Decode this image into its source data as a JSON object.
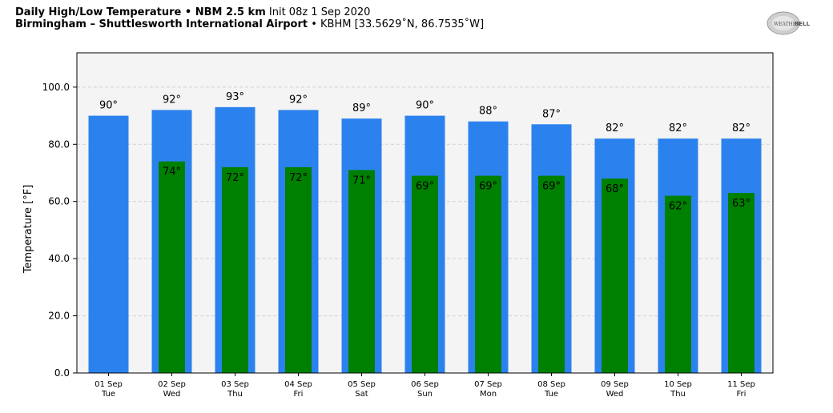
{
  "header": {
    "line1_bold": "Daily High/Low Temperature • NBM 2.5 km",
    "line1_normal": "Init 08z 1 Sep 2020",
    "line2_bold": "Birmingham – Shuttlesworth International Airport",
    "line2_normal": "• KBHM [33.5629˚N, 86.7535˚W]"
  },
  "logo": {
    "text_small": "WEATHER",
    "text_big": "BELL",
    "icon": "weatherbell-logo"
  },
  "colors": {
    "high": "#2b82ee",
    "low": "#008000",
    "background": "#f4f4f4",
    "grid": "#d0d0d0"
  },
  "chart_data": {
    "type": "bar",
    "ylabel": "Temperature [°F]",
    "ylim": [
      0,
      112
    ],
    "yticks": [
      "0.0",
      "20.0",
      "40.0",
      "60.0",
      "80.0",
      "100.0"
    ],
    "ytick_values": [
      0,
      20,
      40,
      60,
      80,
      100
    ],
    "grid": true,
    "categories": [
      {
        "date": "01 Sep",
        "day": "Tue"
      },
      {
        "date": "02 Sep",
        "day": "Wed"
      },
      {
        "date": "03 Sep",
        "day": "Thu"
      },
      {
        "date": "04 Sep",
        "day": "Fri"
      },
      {
        "date": "05 Sep",
        "day": "Sat"
      },
      {
        "date": "06 Sep",
        "day": "Sun"
      },
      {
        "date": "07 Sep",
        "day": "Mon"
      },
      {
        "date": "08 Sep",
        "day": "Tue"
      },
      {
        "date": "09 Sep",
        "day": "Wed"
      },
      {
        "date": "10 Sep",
        "day": "Thu"
      },
      {
        "date": "11 Sep",
        "day": "Fri"
      }
    ],
    "series": [
      {
        "key": "high",
        "values": [
          90,
          92,
          93,
          92,
          89,
          90,
          88,
          87,
          82,
          82,
          82
        ],
        "labels": [
          "90°",
          "92°",
          "93°",
          "92°",
          "89°",
          "90°",
          "88°",
          "87°",
          "82°",
          "82°",
          "82°"
        ]
      },
      {
        "key": "low",
        "values": [
          null,
          74,
          72,
          72,
          71,
          69,
          69,
          69,
          68,
          62,
          63
        ],
        "labels": [
          "",
          "74°",
          "72°",
          "72°",
          "71°",
          "69°",
          "69°",
          "69°",
          "68°",
          "62°",
          "63°"
        ]
      }
    ]
  }
}
